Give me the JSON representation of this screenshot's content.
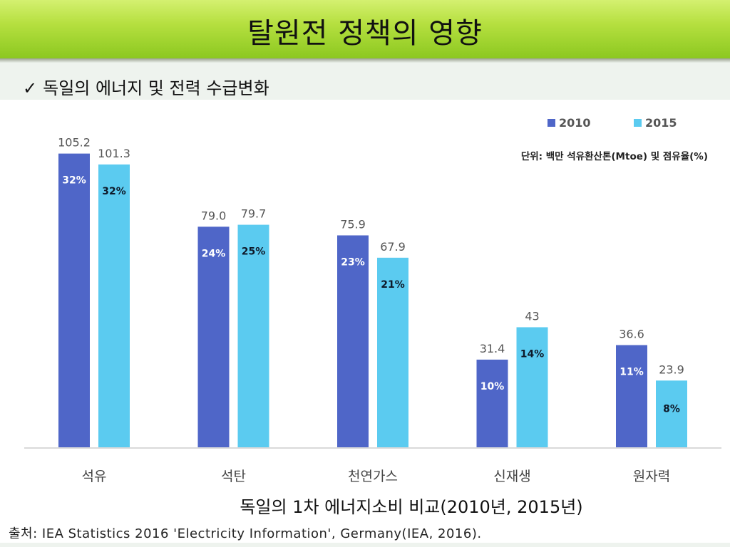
{
  "slide": {
    "title": "탈원전 정책의 영향",
    "subtitle_check": "✓",
    "subtitle": "독일의 에너지 및 전력 수급변화",
    "caption": "독일의 1차 에너지소비 비교(2010년, 2015년)",
    "source": "출처: IEA Statistics 2016 'Electricity Information', Germany(IEA, 2016)."
  },
  "chart_data": {
    "type": "bar",
    "title": "독일의 1차 에너지소비 비교(2010년, 2015년)",
    "unit_note": "단위: 백만 석유환산톤(Mtoe)  및 점유율(%)",
    "categories": [
      "석유",
      "석탄",
      "천연가스",
      "신재생",
      "원자력"
    ],
    "series": [
      {
        "name": "2010",
        "color": "#4f66c8",
        "values": [
          105.2,
          79.0,
          75.9,
          31.4,
          36.6
        ],
        "value_labels": [
          "105.2",
          "79.0",
          "75.9",
          "31.4",
          "36.6"
        ],
        "shares": [
          "32%",
          "24%",
          "23%",
          "10%",
          "11%"
        ]
      },
      {
        "name": "2015",
        "color": "#5bcbf0",
        "values": [
          101.3,
          79.7,
          67.9,
          43,
          23.9
        ],
        "value_labels": [
          "101.3",
          "79.7",
          "67.9",
          "43",
          "23.9"
        ],
        "shares": [
          "32%",
          "25%",
          "21%",
          "14%",
          "8%"
        ]
      }
    ],
    "ylim": [
      0,
      115
    ],
    "grid": false,
    "legend": "top-right",
    "xlabel": "",
    "ylabel": ""
  }
}
